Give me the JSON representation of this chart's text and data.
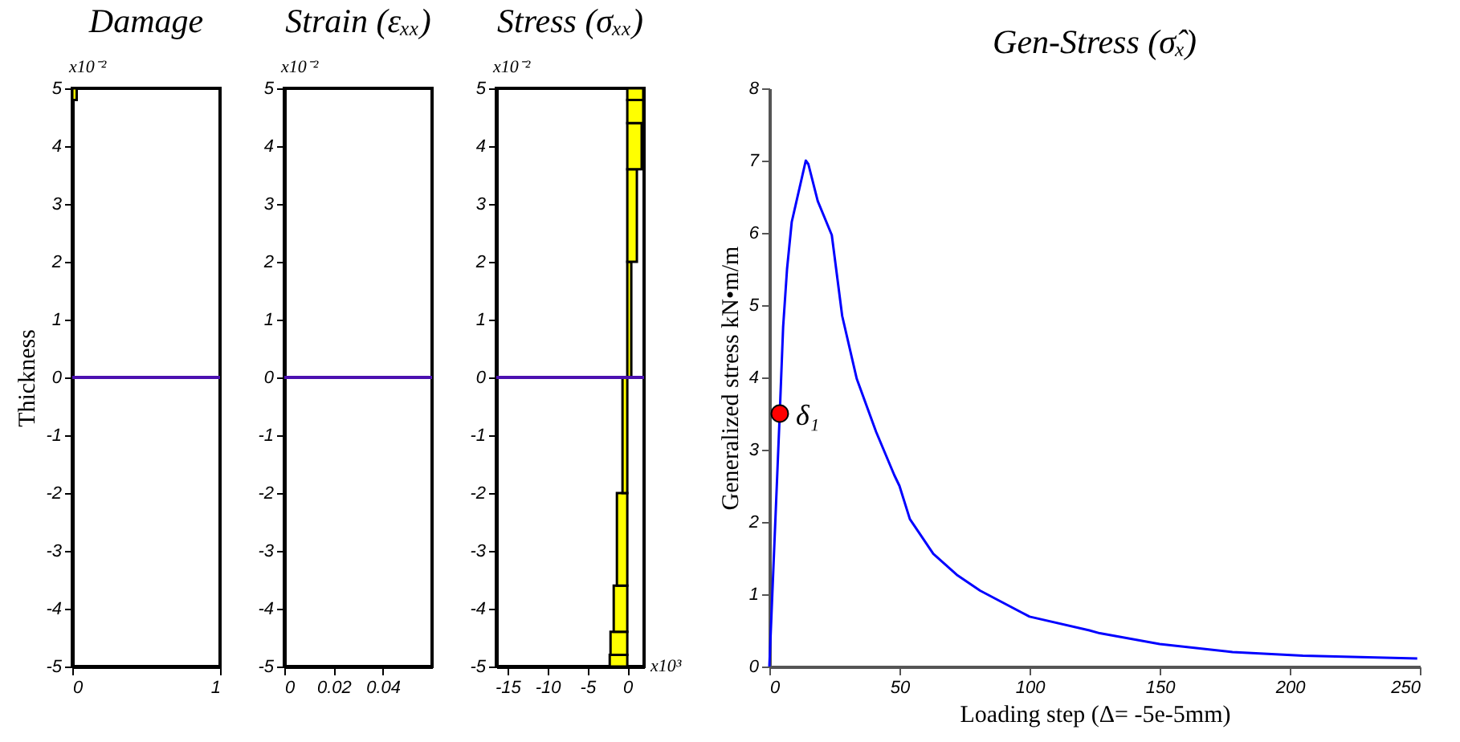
{
  "chart_data": [
    {
      "type": "histogram",
      "orientation": "horizontal",
      "title": "Damage",
      "ylabel": "Thickness",
      "bins": [
        4.8,
        5
      ],
      "values": [
        0.03
      ],
      "color": "#ffff00",
      "xlim": [
        0,
        1
      ],
      "xticks": [
        0,
        1
      ],
      "ylim": [
        -5,
        5
      ],
      "yticks": [
        -5,
        -4,
        -3,
        -2,
        -1,
        0,
        1,
        2,
        3,
        4,
        5
      ],
      "ref_lines": [
        {
          "axis": "y",
          "value": 0,
          "color": "#4b10b0"
        }
      ],
      "annotations": [
        "x10⁻²"
      ]
    },
    {
      "type": "histogram",
      "orientation": "horizontal",
      "title": "Strain (εₓₓ)",
      "xlim": [
        0,
        0.06
      ],
      "xticks": [
        0,
        0.02,
        0.04
      ],
      "ylim": [
        -5,
        5
      ],
      "yticks": [
        -5,
        -4,
        -3,
        -2,
        -1,
        0,
        1,
        2,
        3,
        4,
        5
      ],
      "ref_lines": [
        {
          "axis": "y",
          "value": 0,
          "color": "#4b10b0"
        }
      ],
      "annotations": [
        "x10⁻²"
      ]
    },
    {
      "type": "histogram",
      "orientation": "horizontal",
      "title": "Stress (σₓₓ)",
      "bins": [
        -5,
        -4.8,
        -4.4,
        -3.6,
        -2,
        0,
        2,
        3.6,
        4.4,
        4.8,
        5
      ],
      "values": [
        -2.2,
        -2.1,
        -1.7,
        -1.3,
        -0.6,
        0.5,
        1.2,
        1.8,
        2.0,
        2.0
      ],
      "color": "#ffff00",
      "xlim": [
        -16.4,
        2.1
      ],
      "xticks": [
        -15,
        -10,
        -5,
        0
      ],
      "ylim": [
        -5,
        5
      ],
      "yticks": [
        -5,
        -4,
        -3,
        -2,
        -1,
        0,
        1,
        2,
        3,
        4,
        5
      ],
      "ref_lines": [
        {
          "axis": "y",
          "value": 0,
          "color": "#4b10b0"
        }
      ],
      "annotations": [
        "x10⁻²",
        "x10³"
      ]
    },
    {
      "type": "line",
      "title": "Gen-Stress (σ̂ₓ)",
      "xlabel": "Loading step (Δ= -5e-5mm)",
      "ylabel": "Generalized stress kN•m/m",
      "x": [
        0,
        4,
        5.3,
        6.8,
        8.6,
        14,
        15,
        18.6,
        24,
        28,
        33.6,
        41,
        48,
        50,
        54,
        63,
        72,
        81,
        100,
        123,
        127,
        150,
        178,
        205,
        249
      ],
      "series": [
        {
          "color": "#0000ff",
          "values": [
            0,
            3.5,
            4.7,
            5.5,
            6.15,
            7.0,
            6.95,
            6.44,
            5.97,
            4.85,
            3.98,
            3.25,
            2.65,
            2.5,
            2.04,
            1.56,
            1.27,
            1.05,
            0.69,
            0.5,
            0.46,
            0.31,
            0.2,
            0.15,
            0.11
          ]
        },
        {
          "type": "scatter",
          "color": "#ff0000",
          "marker": "circle",
          "x": [
            4
          ],
          "values": [
            3.5
          ]
        }
      ],
      "annotations": [
        {
          "text": "δ₁",
          "x": 4,
          "y": 3.5
        }
      ],
      "xlim": [
        0,
        250
      ],
      "xticks": [
        0,
        50,
        100,
        150,
        200,
        250
      ],
      "ylim": [
        0,
        8
      ],
      "yticks": [
        0,
        1,
        2,
        3,
        4,
        5,
        6,
        7,
        8
      ]
    }
  ]
}
